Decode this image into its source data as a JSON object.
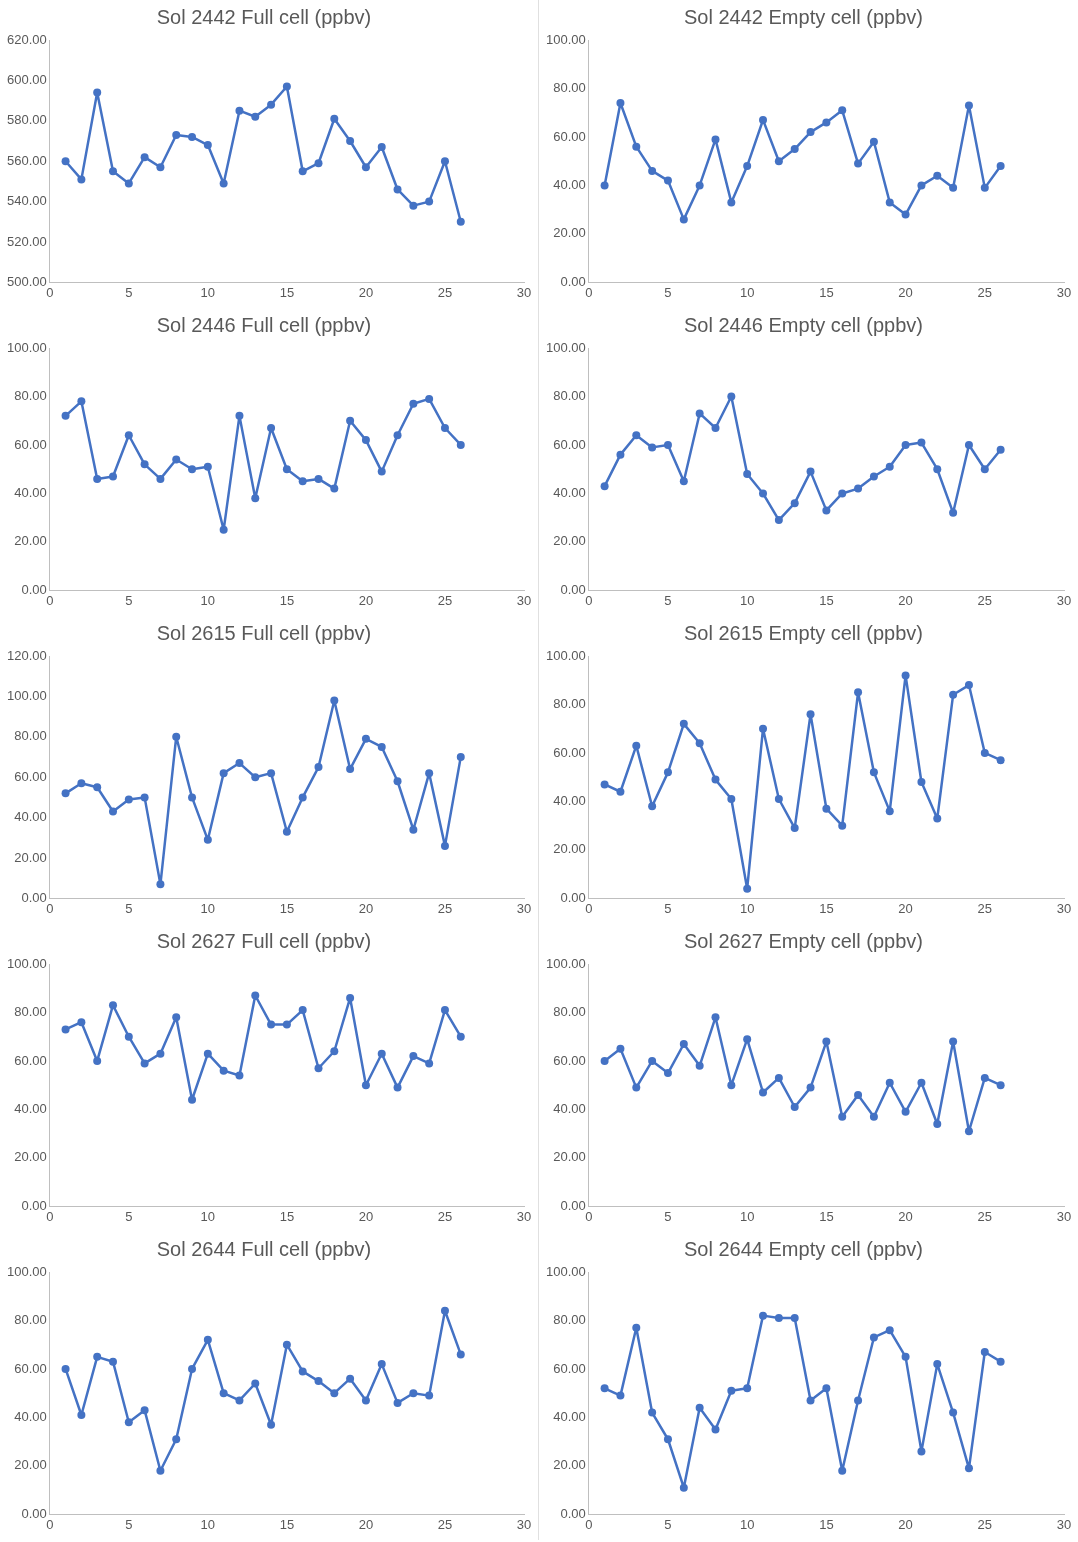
{
  "chart_data": [
    {
      "type": "line",
      "title": "Sol 2442 Full cell (ppbv)",
      "x": [
        1,
        2,
        3,
        4,
        5,
        6,
        7,
        8,
        9,
        10,
        11,
        12,
        13,
        14,
        15,
        16,
        17,
        18,
        19,
        20,
        21,
        22,
        23,
        24,
        25,
        26
      ],
      "series": [
        {
          "color": "#4472c4",
          "values": [
            560,
            551,
            594,
            555,
            549,
            562,
            557,
            573,
            572,
            568,
            549,
            585,
            582,
            588,
            597,
            555,
            559,
            581,
            570,
            557,
            567,
            546,
            538,
            540,
            560,
            530
          ]
        }
      ],
      "xlim": [
        0,
        30
      ],
      "xticks": [
        0,
        5,
        10,
        15,
        20,
        25,
        30
      ],
      "ylim": [
        500,
        620
      ],
      "yticks": [
        {
          "value": 500,
          "label": "500.00"
        },
        {
          "value": 520,
          "label": "520.00"
        },
        {
          "value": 540,
          "label": "540.00"
        },
        {
          "value": 560,
          "label": "560.00"
        },
        {
          "value": 580,
          "label": "580.00"
        },
        {
          "value": 600,
          "label": "600.00"
        },
        {
          "value": 620,
          "label": "620.00"
        }
      ],
      "grid": false,
      "legend": false,
      "marker": "circle",
      "line_style": "solid"
    },
    {
      "type": "line",
      "title": "Sol 2442 Empty cell (ppbv)",
      "x": [
        1,
        2,
        3,
        4,
        5,
        6,
        7,
        8,
        9,
        10,
        11,
        12,
        13,
        14,
        15,
        16,
        17,
        18,
        19,
        20,
        21,
        22,
        23,
        24,
        25,
        26
      ],
      "series": [
        {
          "color": "#4472c4",
          "values": [
            40,
            74,
            56,
            46,
            42,
            26,
            40,
            59,
            33,
            48,
            67,
            50,
            55,
            62,
            66,
            71,
            49,
            58,
            33,
            28,
            40,
            44,
            39,
            73,
            39,
            48
          ]
        }
      ],
      "xlim": [
        0,
        30
      ],
      "xticks": [
        0,
        5,
        10,
        15,
        20,
        25,
        30
      ],
      "ylim": [
        0,
        100
      ],
      "yticks": [
        {
          "value": 0,
          "label": "0.00"
        },
        {
          "value": 20,
          "label": "20.00"
        },
        {
          "value": 40,
          "label": "40.00"
        },
        {
          "value": 60,
          "label": "60.00"
        },
        {
          "value": 80,
          "label": "80.00"
        },
        {
          "value": 100,
          "label": "100.00"
        }
      ],
      "grid": false,
      "legend": false,
      "marker": "circle",
      "line_style": "solid"
    },
    {
      "type": "line",
      "title": "Sol 2446 Full cell (ppbv)",
      "x": [
        1,
        2,
        3,
        4,
        5,
        6,
        7,
        8,
        9,
        10,
        11,
        12,
        13,
        14,
        15,
        16,
        17,
        18,
        19,
        20,
        21,
        22,
        23,
        24,
        25,
        26
      ],
      "series": [
        {
          "color": "#4472c4",
          "values": [
            72,
            78,
            46,
            47,
            64,
            52,
            46,
            54,
            50,
            51,
            25,
            72,
            38,
            67,
            50,
            45,
            46,
            42,
            70,
            62,
            49,
            64,
            77,
            79,
            67,
            60
          ]
        }
      ],
      "xlim": [
        0,
        30
      ],
      "xticks": [
        0,
        5,
        10,
        15,
        20,
        25,
        30
      ],
      "ylim": [
        0,
        100
      ],
      "yticks": [
        {
          "value": 0,
          "label": "0.00"
        },
        {
          "value": 20,
          "label": "20.00"
        },
        {
          "value": 40,
          "label": "40.00"
        },
        {
          "value": 60,
          "label": "60.00"
        },
        {
          "value": 80,
          "label": "80.00"
        },
        {
          "value": 100,
          "label": "100.00"
        }
      ],
      "grid": false,
      "legend": false,
      "marker": "circle",
      "line_style": "solid"
    },
    {
      "type": "line",
      "title": "Sol 2446 Empty cell (ppbv)",
      "x": [
        1,
        2,
        3,
        4,
        5,
        6,
        7,
        8,
        9,
        10,
        11,
        12,
        13,
        14,
        15,
        16,
        17,
        18,
        19,
        20,
        21,
        22,
        23,
        24,
        25,
        26
      ],
      "series": [
        {
          "color": "#4472c4",
          "values": [
            43,
            56,
            64,
            59,
            60,
            45,
            73,
            67,
            80,
            48,
            40,
            29,
            36,
            49,
            33,
            40,
            42,
            47,
            51,
            60,
            61,
            50,
            32,
            60,
            50,
            58
          ]
        }
      ],
      "xlim": [
        0,
        30
      ],
      "xticks": [
        0,
        5,
        10,
        15,
        20,
        25,
        30
      ],
      "ylim": [
        0,
        100
      ],
      "yticks": [
        {
          "value": 0,
          "label": "0.00"
        },
        {
          "value": 20,
          "label": "20.00"
        },
        {
          "value": 40,
          "label": "40.00"
        },
        {
          "value": 60,
          "label": "60.00"
        },
        {
          "value": 80,
          "label": "80.00"
        },
        {
          "value": 100,
          "label": "100.00"
        }
      ],
      "grid": false,
      "legend": false,
      "marker": "circle",
      "line_style": "solid"
    },
    {
      "type": "line",
      "title": "Sol 2615 Full cell (ppbv)",
      "x": [
        1,
        2,
        3,
        4,
        5,
        6,
        7,
        8,
        9,
        10,
        11,
        12,
        13,
        14,
        15,
        16,
        17,
        18,
        19,
        20,
        21,
        22,
        23,
        24,
        25,
        26
      ],
      "series": [
        {
          "color": "#4472c4",
          "values": [
            52,
            57,
            55,
            43,
            49,
            50,
            7,
            80,
            50,
            29,
            62,
            67,
            60,
            62,
            33,
            50,
            65,
            98,
            64,
            79,
            75,
            58,
            34,
            62,
            26,
            70
          ]
        }
      ],
      "xlim": [
        0,
        30
      ],
      "xticks": [
        0,
        5,
        10,
        15,
        20,
        25,
        30
      ],
      "ylim": [
        0,
        120
      ],
      "yticks": [
        {
          "value": 0,
          "label": "0.00"
        },
        {
          "value": 20,
          "label": "20.00"
        },
        {
          "value": 40,
          "label": "40.00"
        },
        {
          "value": 60,
          "label": "60.00"
        },
        {
          "value": 80,
          "label": "80.00"
        },
        {
          "value": 100,
          "label": "100.00"
        },
        {
          "value": 120,
          "label": "120.00"
        }
      ],
      "grid": false,
      "legend": false,
      "marker": "circle",
      "line_style": "solid"
    },
    {
      "type": "line",
      "title": "Sol 2615 Empty cell (ppbv)",
      "x": [
        1,
        2,
        3,
        4,
        5,
        6,
        7,
        8,
        9,
        10,
        11,
        12,
        13,
        14,
        15,
        16,
        17,
        18,
        19,
        20,
        21,
        22,
        23,
        24,
        25,
        26
      ],
      "series": [
        {
          "color": "#4472c4",
          "values": [
            47,
            44,
            63,
            38,
            52,
            72,
            64,
            49,
            41,
            4,
            70,
            41,
            29,
            76,
            37,
            30,
            85,
            52,
            36,
            92,
            48,
            33,
            84,
            88,
            60,
            57
          ]
        }
      ],
      "xlim": [
        0,
        30
      ],
      "xticks": [
        0,
        5,
        10,
        15,
        20,
        25,
        30
      ],
      "ylim": [
        0,
        100
      ],
      "yticks": [
        {
          "value": 0,
          "label": "0.00"
        },
        {
          "value": 20,
          "label": "20.00"
        },
        {
          "value": 40,
          "label": "40.00"
        },
        {
          "value": 60,
          "label": "60.00"
        },
        {
          "value": 80,
          "label": "80.00"
        },
        {
          "value": 100,
          "label": "100.00"
        }
      ],
      "grid": false,
      "legend": false,
      "marker": "circle",
      "line_style": "solid"
    },
    {
      "type": "line",
      "title": "Sol 2627 Full cell (ppbv)",
      "x": [
        1,
        2,
        3,
        4,
        5,
        6,
        7,
        8,
        9,
        10,
        11,
        12,
        13,
        14,
        15,
        16,
        17,
        18,
        19,
        20,
        21,
        22,
        23,
        24,
        25,
        26
      ],
      "series": [
        {
          "color": "#4472c4",
          "values": [
            73,
            76,
            60,
            83,
            70,
            59,
            63,
            78,
            44,
            63,
            56,
            54,
            87,
            75,
            75,
            81,
            57,
            64,
            86,
            50,
            63,
            49,
            62,
            59,
            81,
            70
          ]
        }
      ],
      "xlim": [
        0,
        30
      ],
      "xticks": [
        0,
        5,
        10,
        15,
        20,
        25,
        30
      ],
      "ylim": [
        0,
        100
      ],
      "yticks": [
        {
          "value": 0,
          "label": "0.00"
        },
        {
          "value": 20,
          "label": "20.00"
        },
        {
          "value": 40,
          "label": "40.00"
        },
        {
          "value": 60,
          "label": "60.00"
        },
        {
          "value": 80,
          "label": "80.00"
        },
        {
          "value": 100,
          "label": "100.00"
        }
      ],
      "grid": false,
      "legend": false,
      "marker": "circle",
      "line_style": "solid"
    },
    {
      "type": "line",
      "title": "Sol 2627 Empty cell (ppbv)",
      "x": [
        1,
        2,
        3,
        4,
        5,
        6,
        7,
        8,
        9,
        10,
        11,
        12,
        13,
        14,
        15,
        16,
        17,
        18,
        19,
        20,
        21,
        22,
        23,
        24,
        25,
        26
      ],
      "series": [
        {
          "color": "#4472c4",
          "values": [
            60,
            65,
            49,
            60,
            55,
            67,
            58,
            78,
            50,
            69,
            47,
            53,
            41,
            49,
            68,
            37,
            46,
            37,
            51,
            39,
            51,
            34,
            68,
            31,
            53,
            50
          ]
        }
      ],
      "xlim": [
        0,
        30
      ],
      "xticks": [
        0,
        5,
        10,
        15,
        20,
        25,
        30
      ],
      "ylim": [
        0,
        100
      ],
      "yticks": [
        {
          "value": 0,
          "label": "0.00"
        },
        {
          "value": 20,
          "label": "20.00"
        },
        {
          "value": 40,
          "label": "40.00"
        },
        {
          "value": 60,
          "label": "60.00"
        },
        {
          "value": 80,
          "label": "80.00"
        },
        {
          "value": 100,
          "label": "100.00"
        }
      ],
      "grid": false,
      "legend": false,
      "marker": "circle",
      "line_style": "solid"
    },
    {
      "type": "line",
      "title": "Sol 2644 Full cell (ppbv)",
      "x": [
        1,
        2,
        3,
        4,
        5,
        6,
        7,
        8,
        9,
        10,
        11,
        12,
        13,
        14,
        15,
        16,
        17,
        18,
        19,
        20,
        21,
        22,
        23,
        24,
        25,
        26
      ],
      "series": [
        {
          "color": "#4472c4",
          "values": [
            60,
            41,
            65,
            63,
            38,
            43,
            18,
            31,
            60,
            72,
            50,
            47,
            54,
            37,
            70,
            59,
            55,
            50,
            56,
            47,
            62,
            46,
            50,
            49,
            84,
            66
          ]
        }
      ],
      "xlim": [
        0,
        30
      ],
      "xticks": [
        0,
        5,
        10,
        15,
        20,
        25,
        30
      ],
      "ylim": [
        0,
        100
      ],
      "yticks": [
        {
          "value": 0,
          "label": "0.00"
        },
        {
          "value": 20,
          "label": "20.00"
        },
        {
          "value": 40,
          "label": "40.00"
        },
        {
          "value": 60,
          "label": "60.00"
        },
        {
          "value": 80,
          "label": "80.00"
        },
        {
          "value": 100,
          "label": "100.00"
        }
      ],
      "grid": false,
      "legend": false,
      "marker": "circle",
      "line_style": "solid"
    },
    {
      "type": "line",
      "title": "Sol 2644 Empty cell (ppbv)",
      "x": [
        1,
        2,
        3,
        4,
        5,
        6,
        7,
        8,
        9,
        10,
        11,
        12,
        13,
        14,
        15,
        16,
        17,
        18,
        19,
        20,
        21,
        22,
        23,
        24,
        25,
        26
      ],
      "series": [
        {
          "color": "#4472c4",
          "values": [
            52,
            49,
            77,
            42,
            31,
            11,
            44,
            35,
            51,
            52,
            82,
            81,
            81,
            47,
            52,
            18,
            47,
            73,
            76,
            65,
            26,
            62,
            42,
            19,
            67,
            63
          ]
        }
      ],
      "xlim": [
        0,
        30
      ],
      "xticks": [
        0,
        5,
        10,
        15,
        20,
        25,
        30
      ],
      "ylim": [
        0,
        100
      ],
      "yticks": [
        {
          "value": 0,
          "label": "0.00"
        },
        {
          "value": 20,
          "label": "20.00"
        },
        {
          "value": 40,
          "label": "40.00"
        },
        {
          "value": 60,
          "label": "60.00"
        },
        {
          "value": 80,
          "label": "80.00"
        },
        {
          "value": 100,
          "label": "100.00"
        }
      ],
      "grid": false,
      "legend": false,
      "marker": "circle",
      "line_style": "solid"
    }
  ]
}
